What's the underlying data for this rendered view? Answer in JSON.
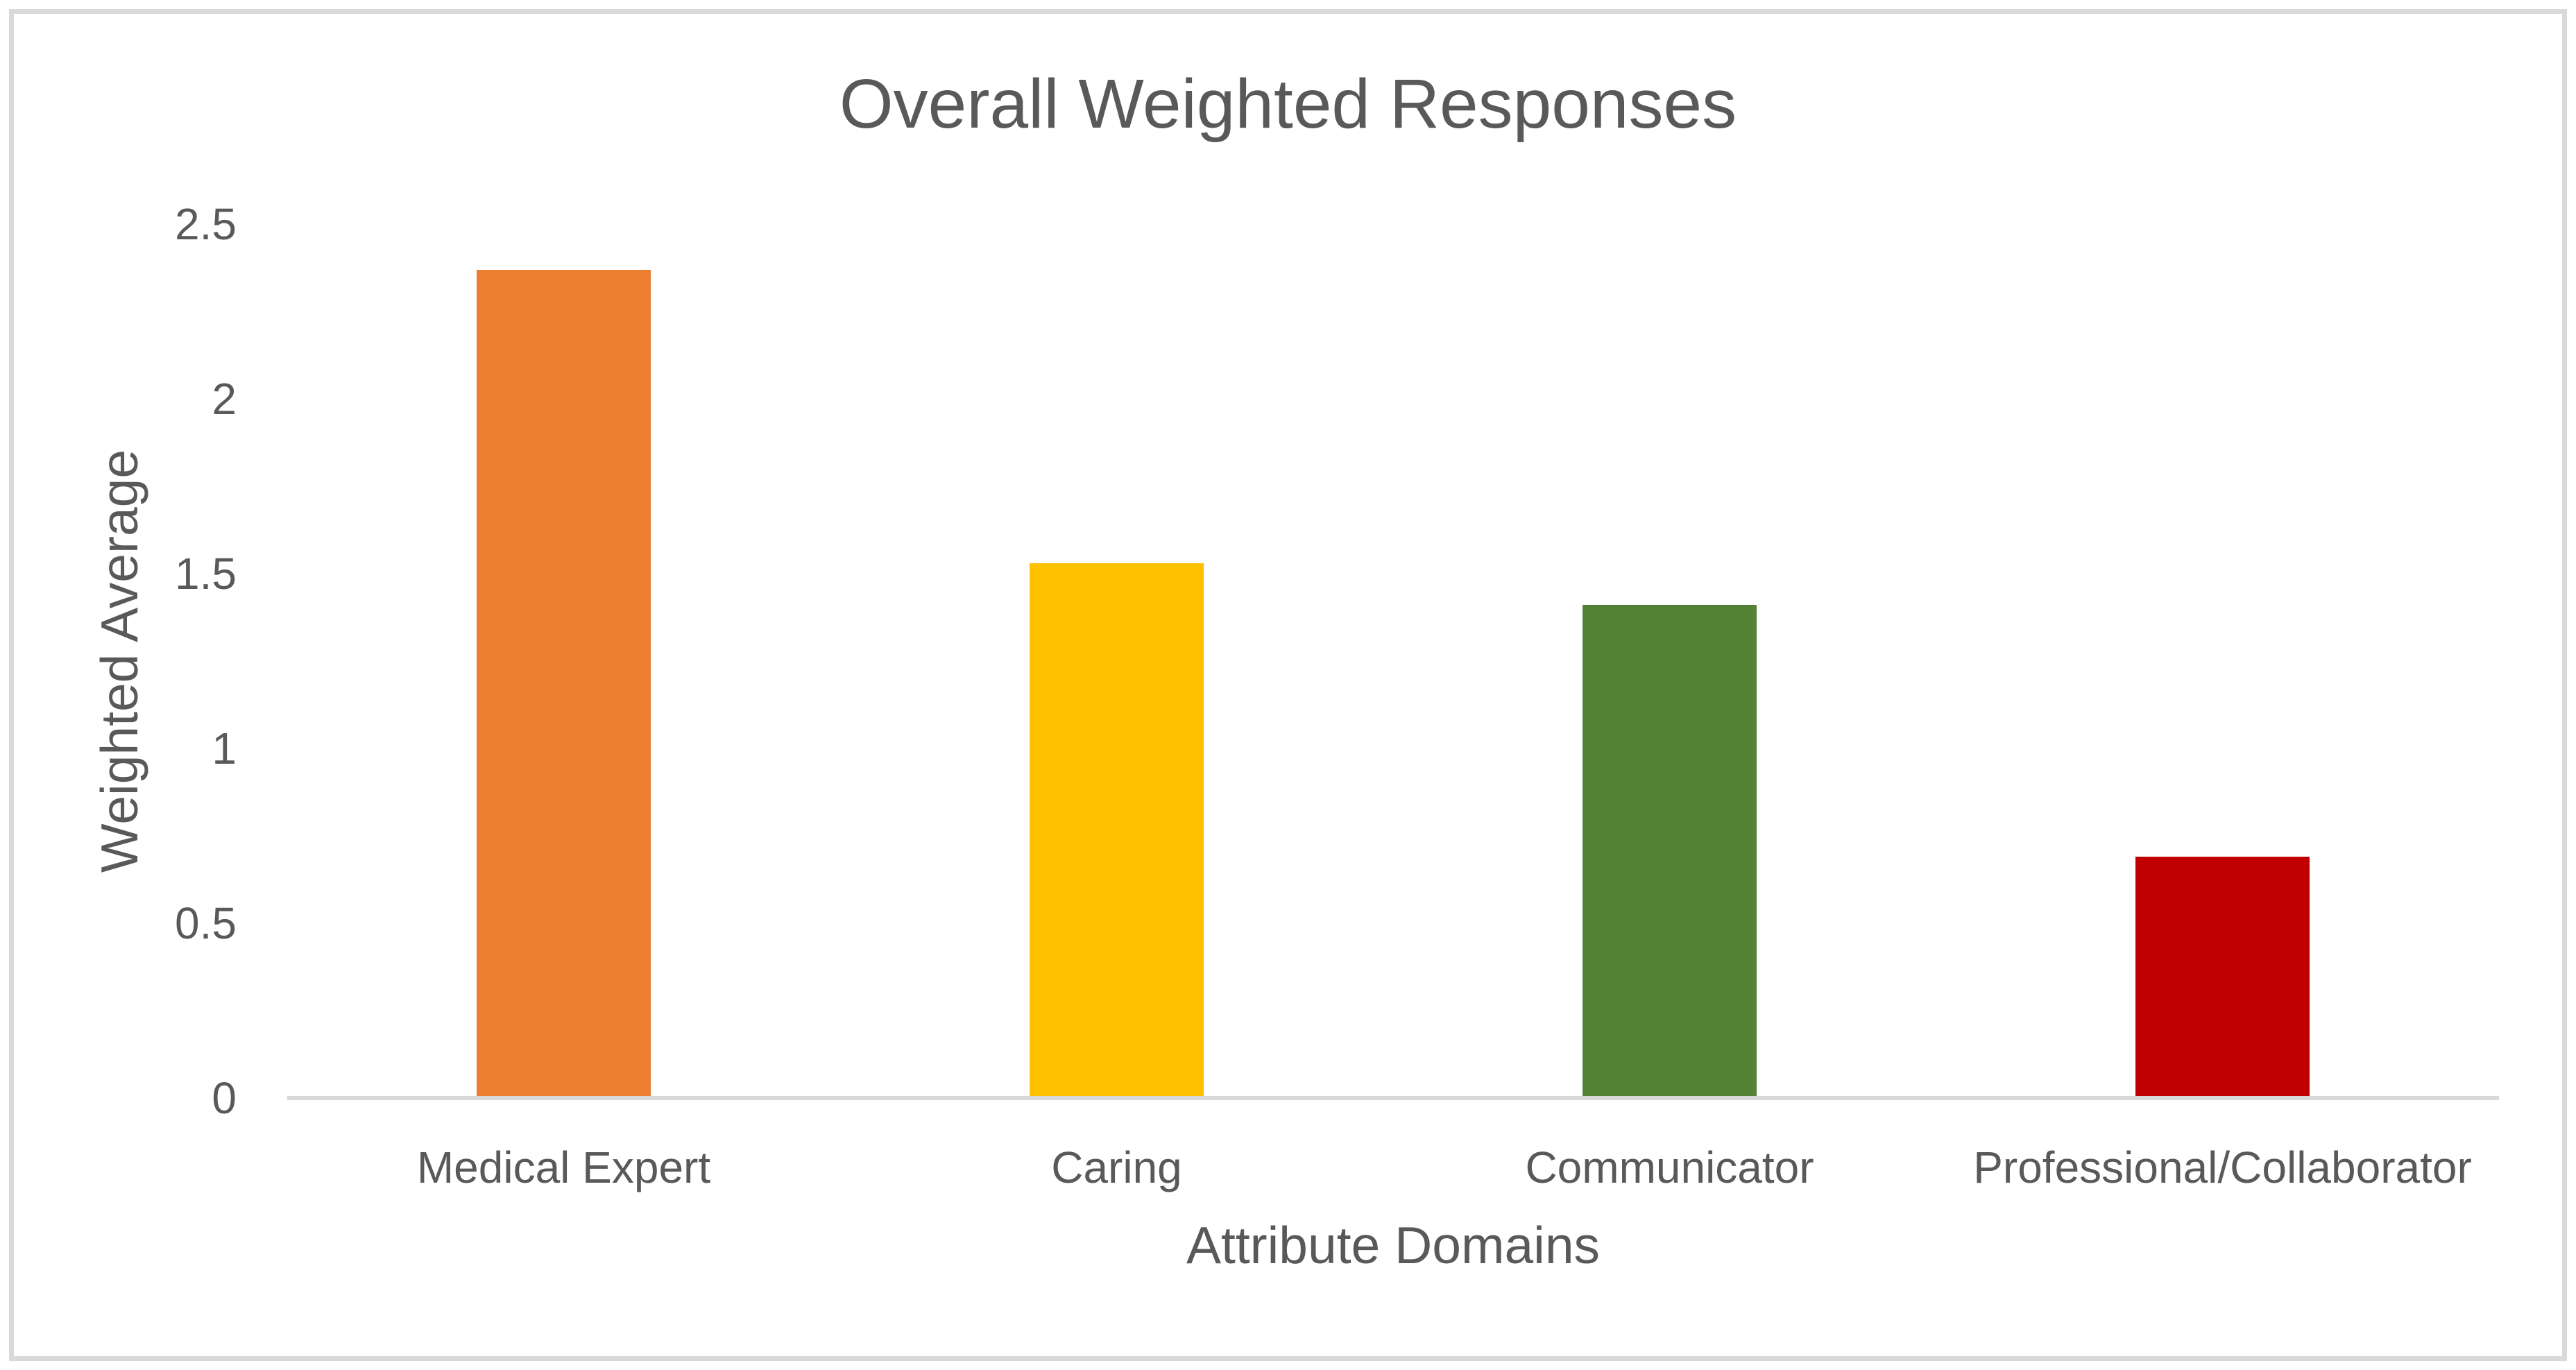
{
  "chart_data": {
    "type": "bar",
    "title": "Overall Weighted Responses",
    "xlabel": "Attribute Domains",
    "ylabel": "Weighted Average",
    "categories": [
      "Medical Expert",
      "Caring",
      "Communicator",
      "Professional/Collaborator"
    ],
    "values": [
      2.37,
      1.53,
      1.41,
      0.69
    ],
    "bar_colors": [
      "#ED7D31",
      "#FFC000",
      "#548235",
      "#C00000"
    ],
    "ylim": [
      0,
      2.5
    ],
    "yticks": [
      0,
      0.5,
      1,
      1.5,
      2,
      2.5
    ],
    "grid": false,
    "legend": false,
    "colors": {
      "text": "#595959",
      "axis_line": "#D9D9D9",
      "frame_border": "#D9D9D9",
      "background": "#FFFFFF"
    }
  }
}
